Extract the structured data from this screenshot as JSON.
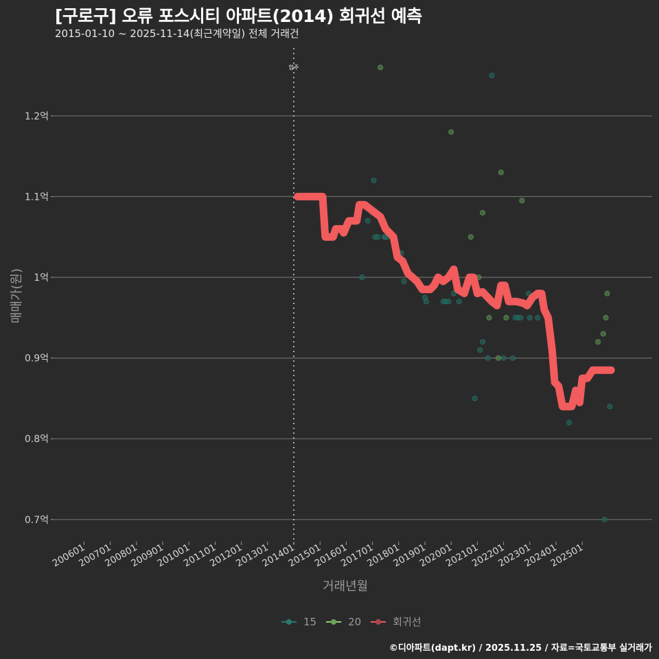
{
  "header": {
    "title": "[구로구] 오류 포스시티 아파트(2014) 회귀선 예측",
    "subtitle": "2015-01-10 ~ 2025-11-14(최근계약일) 전체 거래건"
  },
  "caption": "©디아파트(dapt.kr) / 2025.11.25 / 자료=국토교통부 실거래가",
  "colors": {
    "background": "#2b2a2b",
    "grid": "#6b6b6b",
    "series_15": "#2a7a6e",
    "series_20": "#6aa35a",
    "regression": "#f25c5c"
  },
  "chart_data": {
    "type": "scatter",
    "title": "[구로구] 오류 포스시티 아파트(2014) 회귀선 예측",
    "subtitle": "2015-01-10 ~ 2025-11-14(최근계약일) 전체 거래건",
    "xlabel": "거래년월",
    "ylabel": "매매가(원)",
    "x_ticks": [
      "200601",
      "200701",
      "200801",
      "200901",
      "201001",
      "201101",
      "201201",
      "201301",
      "201401",
      "201501",
      "201601",
      "201701",
      "201801",
      "201901",
      "202001",
      "202101",
      "202201",
      "202301",
      "202401",
      "202501"
    ],
    "y_ticks": [
      "0.7억",
      "0.8억",
      "0.9억",
      "1억",
      "1.1억",
      "1.2억"
    ],
    "ylim": [
      0.67,
      1.27
    ],
    "y_unit": "억",
    "grid": "horizontal",
    "legend_position": "bottom",
    "annotations": [
      {
        "x": "201401",
        "label": "입주",
        "style": "dotted vertical line"
      }
    ],
    "legend": [
      "15",
      "20",
      "회귀선"
    ],
    "series": [
      {
        "name": "15",
        "type": "scatter",
        "points": [
          [
            2016.6,
            1.0
          ],
          [
            2016.82,
            1.07
          ],
          [
            2017.0,
            1.08
          ],
          [
            2017.05,
            1.12
          ],
          [
            2017.1,
            1.05
          ],
          [
            2017.2,
            1.05
          ],
          [
            2017.45,
            1.05
          ],
          [
            2017.5,
            1.05
          ],
          [
            2017.58,
            1.05
          ],
          [
            2017.9,
            1.03
          ],
          [
            2018.1,
            1.03
          ],
          [
            2018.2,
            0.995
          ],
          [
            2019.0,
            0.975
          ],
          [
            2019.05,
            0.97
          ],
          [
            2019.7,
            0.97
          ],
          [
            2019.8,
            0.97
          ],
          [
            2019.9,
            0.97
          ],
          [
            2020.1,
            0.98
          ],
          [
            2020.3,
            0.97
          ],
          [
            2020.9,
            0.85
          ],
          [
            2021.1,
            0.91
          ],
          [
            2021.2,
            0.92
          ],
          [
            2021.4,
            0.9
          ],
          [
            2021.55,
            1.25
          ],
          [
            2022.0,
            0.9
          ],
          [
            2022.35,
            0.9
          ],
          [
            2022.45,
            0.95
          ],
          [
            2022.55,
            0.95
          ],
          [
            2022.65,
            0.95
          ],
          [
            2022.95,
            0.98
          ],
          [
            2023.0,
            0.95
          ],
          [
            2023.3,
            0.95
          ],
          [
            2023.7,
            0.95
          ],
          [
            2024.5,
            0.82
          ],
          [
            2025.85,
            0.7
          ],
          [
            2026.05,
            0.84
          ]
        ]
      },
      {
        "name": "20",
        "type": "scatter",
        "points": [
          [
            2017.3,
            1.26
          ],
          [
            2020.0,
            1.18
          ],
          [
            2020.75,
            1.05
          ],
          [
            2021.05,
            1.0
          ],
          [
            2021.2,
            1.08
          ],
          [
            2021.45,
            0.95
          ],
          [
            2021.8,
            0.9
          ],
          [
            2021.9,
            1.13
          ],
          [
            2022.1,
            0.95
          ],
          [
            2022.7,
            1.095
          ],
          [
            2025.6,
            0.92
          ],
          [
            2025.8,
            0.93
          ],
          [
            2025.9,
            0.95
          ],
          [
            2025.95,
            0.98
          ]
        ]
      },
      {
        "name": "회귀선",
        "type": "line",
        "points": [
          [
            2014.15,
            1.1
          ],
          [
            2015.1,
            1.1
          ],
          [
            2015.2,
            1.05
          ],
          [
            2015.5,
            1.05
          ],
          [
            2015.6,
            1.06
          ],
          [
            2015.8,
            1.06
          ],
          [
            2015.9,
            1.055
          ],
          [
            2016.1,
            1.07
          ],
          [
            2016.4,
            1.07
          ],
          [
            2016.5,
            1.09
          ],
          [
            2016.7,
            1.09
          ],
          [
            2016.9,
            1.085
          ],
          [
            2017.1,
            1.08
          ],
          [
            2017.3,
            1.075
          ],
          [
            2017.5,
            1.06
          ],
          [
            2017.8,
            1.05
          ],
          [
            2017.95,
            1.025
          ],
          [
            2018.15,
            1.02
          ],
          [
            2018.35,
            1.005
          ],
          [
            2018.7,
            0.995
          ],
          [
            2018.9,
            0.985
          ],
          [
            2019.2,
            0.985
          ],
          [
            2019.35,
            0.99
          ],
          [
            2019.5,
            1.0
          ],
          [
            2019.7,
            0.995
          ],
          [
            2019.9,
            1.0
          ],
          [
            2020.1,
            1.01
          ],
          [
            2020.25,
            0.985
          ],
          [
            2020.5,
            0.98
          ],
          [
            2020.7,
            1.0
          ],
          [
            2020.85,
            1.0
          ],
          [
            2021.0,
            0.98
          ],
          [
            2021.2,
            0.982
          ],
          [
            2021.4,
            0.975
          ],
          [
            2021.55,
            0.97
          ],
          [
            2021.75,
            0.965
          ],
          [
            2021.9,
            0.99
          ],
          [
            2022.05,
            0.99
          ],
          [
            2022.2,
            0.97
          ],
          [
            2022.5,
            0.97
          ],
          [
            2022.75,
            0.968
          ],
          [
            2022.9,
            0.965
          ],
          [
            2023.1,
            0.975
          ],
          [
            2023.3,
            0.98
          ],
          [
            2023.45,
            0.98
          ],
          [
            2023.55,
            0.96
          ],
          [
            2023.7,
            0.95
          ],
          [
            2023.85,
            0.91
          ],
          [
            2023.95,
            0.87
          ],
          [
            2024.1,
            0.865
          ],
          [
            2024.25,
            0.84
          ],
          [
            2024.6,
            0.84
          ],
          [
            2024.75,
            0.86
          ],
          [
            2024.9,
            0.845
          ],
          [
            2025.0,
            0.875
          ],
          [
            2025.2,
            0.875
          ],
          [
            2025.4,
            0.885
          ],
          [
            2025.65,
            0.885
          ],
          [
            2026.1,
            0.885
          ]
        ]
      }
    ]
  },
  "axes": {
    "x_title": "거래년월",
    "y_title": "매매가(원)",
    "y_tick_labels": [
      "1.2억",
      "1.1억",
      "1억",
      "0.9억",
      "0.8억",
      "0.7억"
    ],
    "x_tick_labels": [
      "200601",
      "200701",
      "200801",
      "200901",
      "201001",
      "201101",
      "201201",
      "201301",
      "201401",
      "201501",
      "201601",
      "201701",
      "201801",
      "201901",
      "202001",
      "202101",
      "202201",
      "202301",
      "202401",
      "202501"
    ],
    "annotation_label": "입주"
  },
  "legend": {
    "items": [
      {
        "label": "15",
        "color": "#2a7a6e"
      },
      {
        "label": "20",
        "color": "#6aa35a"
      },
      {
        "label": "회귀선",
        "color": "#f25c5c"
      }
    ]
  }
}
